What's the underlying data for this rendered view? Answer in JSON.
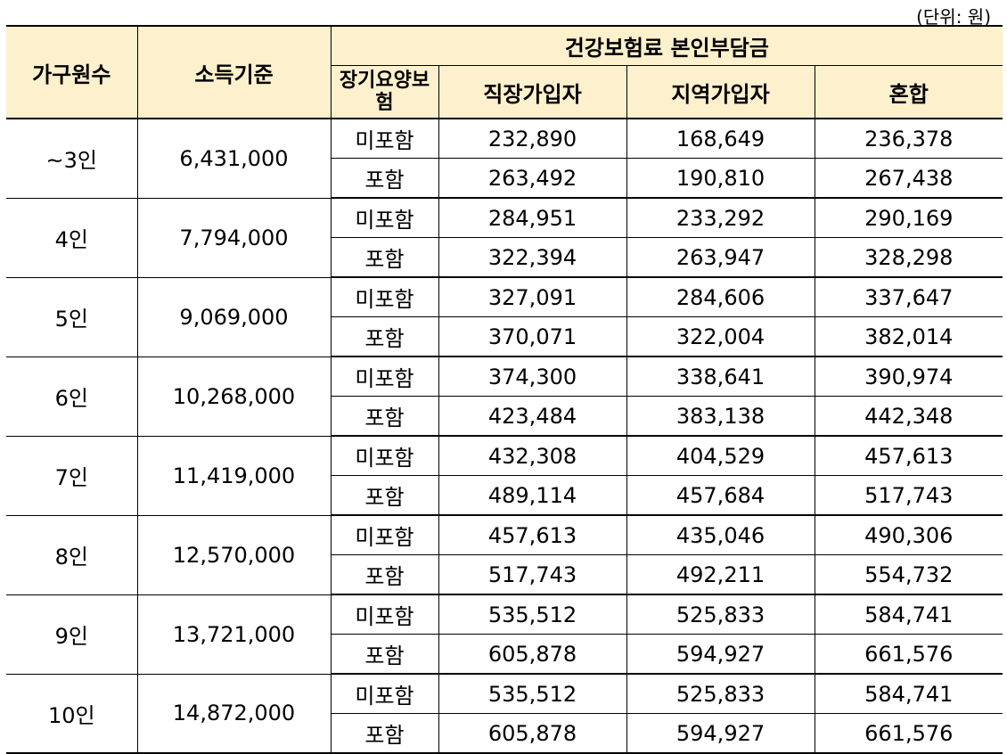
{
  "unit_note": "(단위: 원)",
  "header": {
    "household": "가구원수",
    "income": "소득기준",
    "premium_group": "건강보험료 본인부담금",
    "ltc": "장기요양보험",
    "employee": "직장가입자",
    "regional": "지역가입자",
    "mixed": "혼합"
  },
  "rows": [
    {
      "household": "~3인",
      "income": "6,431,000",
      "excl": {
        "label": "미포함",
        "employee": "232,890",
        "regional": "168,649",
        "mixed": "236,378"
      },
      "incl": {
        "label": "포함",
        "employee": "263,492",
        "regional": "190,810",
        "mixed": "267,438"
      }
    },
    {
      "household": "4인",
      "income": "7,794,000",
      "excl": {
        "label": "미포함",
        "employee": "284,951",
        "regional": "233,292",
        "mixed": "290,169"
      },
      "incl": {
        "label": "포함",
        "employee": "322,394",
        "regional": "263,947",
        "mixed": "328,298"
      }
    },
    {
      "household": "5인",
      "income": "9,069,000",
      "excl": {
        "label": "미포함",
        "employee": "327,091",
        "regional": "284,606",
        "mixed": "337,647"
      },
      "incl": {
        "label": "포함",
        "employee": "370,071",
        "regional": "322,004",
        "mixed": "382,014"
      }
    },
    {
      "household": "6인",
      "income": "10,268,000",
      "excl": {
        "label": "미포함",
        "employee": "374,300",
        "regional": "338,641",
        "mixed": "390,974"
      },
      "incl": {
        "label": "포함",
        "employee": "423,484",
        "regional": "383,138",
        "mixed": "442,348"
      }
    },
    {
      "household": "7인",
      "income": "11,419,000",
      "excl": {
        "label": "미포함",
        "employee": "432,308",
        "regional": "404,529",
        "mixed": "457,613"
      },
      "incl": {
        "label": "포함",
        "employee": "489,114",
        "regional": "457,684",
        "mixed": "517,743"
      }
    },
    {
      "household": "8인",
      "income": "12,570,000",
      "excl": {
        "label": "미포함",
        "employee": "457,613",
        "regional": "435,046",
        "mixed": "490,306"
      },
      "incl": {
        "label": "포함",
        "employee": "517,743",
        "regional": "492,211",
        "mixed": "554,732"
      }
    },
    {
      "household": "9인",
      "income": "13,721,000",
      "excl": {
        "label": "미포함",
        "employee": "535,512",
        "regional": "525,833",
        "mixed": "584,741"
      },
      "incl": {
        "label": "포함",
        "employee": "605,878",
        "regional": "594,927",
        "mixed": "661,576"
      }
    },
    {
      "household": "10인",
      "income": "14,872,000",
      "excl": {
        "label": "미포함",
        "employee": "535,512",
        "regional": "525,833",
        "mixed": "584,741"
      },
      "incl": {
        "label": "포함",
        "employee": "605,878",
        "regional": "594,927",
        "mixed": "661,576"
      }
    }
  ],
  "colors": {
    "header_bg": "#fdf0cc",
    "border": "#000000"
  }
}
